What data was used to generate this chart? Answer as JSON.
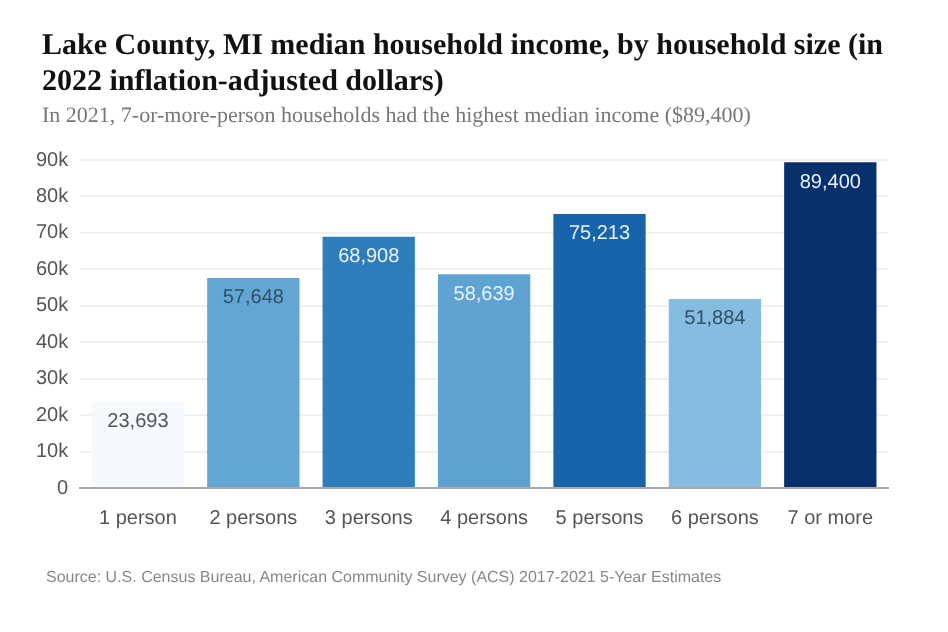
{
  "chart_data": {
    "type": "bar",
    "title": "Lake County, MI median household income, by household size (in 2022 inflation-adjusted dollars)",
    "subtitle": "In 2021, 7-or-more-person households had the highest median income ($89,400)",
    "categories": [
      "1 person",
      "2 persons",
      "3 persons",
      "4 persons",
      "5 persons",
      "6 persons",
      "7 or more"
    ],
    "values": [
      23693,
      57648,
      68908,
      58639,
      75213,
      51884,
      89400
    ],
    "colors": [
      "#f5f9fe",
      "#62a6d3",
      "#2f7ebc",
      "#5ea3d2",
      "#1864aa",
      "#86bcdf",
      "#08306b"
    ],
    "value_labels": [
      "23,693",
      "57,648",
      "68,908",
      "58,639",
      "75,213",
      "51,884",
      "89,400"
    ],
    "ylim": [
      0,
      90000
    ],
    "yticks": [
      0,
      {
        "value": 10000,
        "label": "10k"
      },
      {
        "value": 20000,
        "label": "20k"
      },
      {
        "value": 30000,
        "label": "30k"
      },
      {
        "value": 40000,
        "label": "40k"
      },
      {
        "value": 50000,
        "label": "50k"
      },
      {
        "value": 60000,
        "label": "60k"
      },
      {
        "value": 70000,
        "label": "70k"
      },
      {
        "value": 80000,
        "label": "80k"
      },
      {
        "value": 90000,
        "label": "90k"
      }
    ],
    "grid": "y",
    "legend": false,
    "annotations": [
      "Source: U.S. Census Bureau, American Community Survey (ACS) 2017-2021 5-Year Estimates"
    ]
  }
}
